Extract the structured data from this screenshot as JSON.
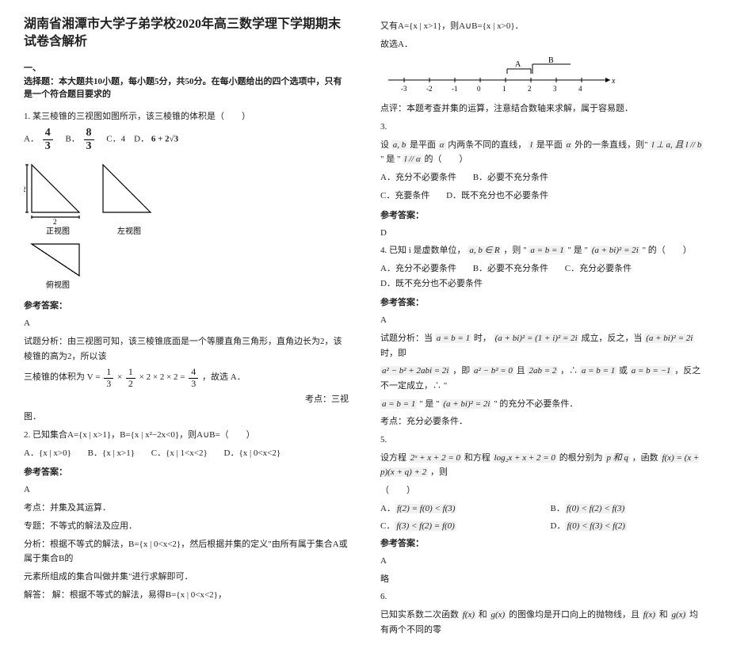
{
  "title": "湖南省湘潭市大学子弟学校2020年高三数学理下学期期末试卷含解析",
  "part1_label": "一、",
  "part1_instr": "选择题：本大题共10小题，每小题5分，共50分。在每小题给出的四个选项中，只有是一个符合题目要求的",
  "q1": {
    "stem": "1. 某三棱锥的三视图如图所示，该三棱锥的体积是（　　）",
    "optA_pre": "A．",
    "optA_num": "4",
    "optA_den": "3",
    "optB_pre": "　B．",
    "optB_num": "8",
    "optB_den": "3",
    "optC": "　C．4　D．",
    "optD_tail": "6 + 2√3",
    "view_front": "正视图",
    "view_side": "左视图",
    "view_top": "俯视图",
    "ans_label": "参考答案：",
    "ans": "A",
    "expl1": "试题分析：由三视图可知，该三棱锥底面是一个等腰直角三角形，直角边长为2，该棱锥的高为2，所以该",
    "expl2_pre": "三棱锥的体积为 V = ",
    "expl2_mid1": " × ",
    "expl2_mid2": " × 2 × 2 × 2 = ",
    "expl2_tail": "，故选 A．",
    "f13n": "1",
    "f13d": "3",
    "f12n": "1",
    "f12d": "2",
    "f43n": "4",
    "f43d": "3",
    "topic": "考点：三视",
    "topic2": "图．"
  },
  "q2": {
    "stem": "2. 已知集合A={x | x>1}，B={x | x²−2x<0}，则A∪B=（　　）",
    "optA": "A．{x | x>0}",
    "optB": "B．{x | x>1}",
    "optC": "C．{x | 1<x<2}",
    "optD": "D．{x | 0<x<2}",
    "ans_label": "参考答案：",
    "ans": "A",
    "kp_label": "考点：并集及其运算．",
    "zt_label": "专题：不等式的解法及应用．",
    "fx": "分析：根据不等式的解法，B={x | 0<x<2}，然后根据并集的定义\"由所有属于集合A或属于集合B的",
    "fx2": "元素所组成的集合叫做并集\"进行求解即可．",
    "jd": "解答： 解：根据不等式的解法，易得B={x | 0<x<2}，"
  },
  "right": {
    "r1": "又有A={x | x>1}，则A∪B={x | x>0}．",
    "r2": "故选A．",
    "numline_labels": [
      "-3",
      "-2",
      "-1",
      "0",
      "1",
      "2",
      "3",
      "4"
    ],
    "numline_A": "A",
    "numline_B": "B",
    "numline_x": "x",
    "dp": "点评：本题考查并集的运算，注意结合数轴来求解，属于容易题．"
  },
  "q3": {
    "num": "3.",
    "stem_pre": "设",
    "ab": "a, b",
    "stem_mid1": "是平面",
    "alpha": "α",
    "stem_mid2": "内两条不同的直线，",
    "l": "l",
    "stem_mid3": "是平面",
    "stem_mid4": "外的一条直线，则\"",
    "cond": "l ⊥ a, 且 l // b",
    "stem_mid5": "\" 是 \"",
    "concl": "l // α",
    "stem_tail": "的（　　）",
    "optA": "A．充分不必要条件",
    "optB": "B．必要不充分条件",
    "optC": "C．充要条件",
    "optD": "D．既不充分也不必要条件",
    "ans_label": "参考答案：",
    "ans": "D"
  },
  "q4": {
    "stem_pre": "4. 已知 i 是虚数单位，",
    "abR": "a, b ∈ R",
    "stem_mid1": "，则 \"",
    "c1": "a = b = 1",
    "stem_mid2": "\" 是 \"",
    "c2": "(a + bi)² = 2i",
    "stem_tail": "\" 的（　　）",
    "optA": "A．充分不必要条件",
    "optB": "B．必要不充分条件",
    "optC": "C．充分必要条件",
    "optD": "D．既不充分也不必要条件",
    "ans_label": "参考答案：",
    "ans": "A",
    "e1_pre": "试题分析：当",
    "e1_a": "a = b = 1",
    "e1_mid": "时，",
    "e1_b": "(a + bi)² = (1 + i)² = 2i",
    "e1_mid2": "成立，反之，当",
    "e1_c": "(a + bi)² = 2i",
    "e1_tail": "时，即",
    "e2_a": "a² − b² + 2abi = 2i",
    "e2_mid1": "，即",
    "e2_b": "a² − b² = 0",
    "e2_mid2": "且",
    "e2_c": "2ab = 2",
    "e2_mid3": "，∴",
    "e2_d": "a = b = 1",
    "e2_mid4": "或",
    "e2_e": "a = b = −1",
    "e2_tail": "，反之不一定成立，∴ \"",
    "e3_a": "a = b = 1",
    "e3_mid": "\" 是 \"",
    "e3_b": "(a + bi)² = 2i",
    "e3_tail": "\" 的充分不必要条件．",
    "kp": "考点：充分必要条件．"
  },
  "q5": {
    "num": "5.",
    "stem_pre": "设方程",
    "eq1": "2ˣ + x + 2 = 0",
    "stem_mid1": "和方程",
    "eq2": "log₂x + x + 2 = 0",
    "stem_mid2": "的根分别为",
    "pq": "p 和 q",
    "stem_mid3": "，函数",
    "fx": "f(x) = (x + p)(x + q) + 2",
    "stem_tail": "，则",
    "brace": "（　　）",
    "optA": "f(2) = f(0) < f(3)",
    "optB": "f(0) < f(2) < f(3)",
    "optC": "f(3) < f(2) = f(0)",
    "optD": "f(0) < f(3) < f(2)",
    "optA_pre": "A．",
    "optB_pre": "B．",
    "optC_pre": "C．",
    "optD_pre": "D．",
    "ans_label": "参考答案：",
    "ans": "A",
    "note": "略"
  },
  "q6": {
    "num": "6.",
    "stem_pre": "已知实系数二次函数",
    "f": "f(x)",
    "and": "和",
    "g": "g(x)",
    "stem_mid": "的图像均是开口向上的抛物线，且",
    "stem_mid2": "均有两个不同的零"
  }
}
